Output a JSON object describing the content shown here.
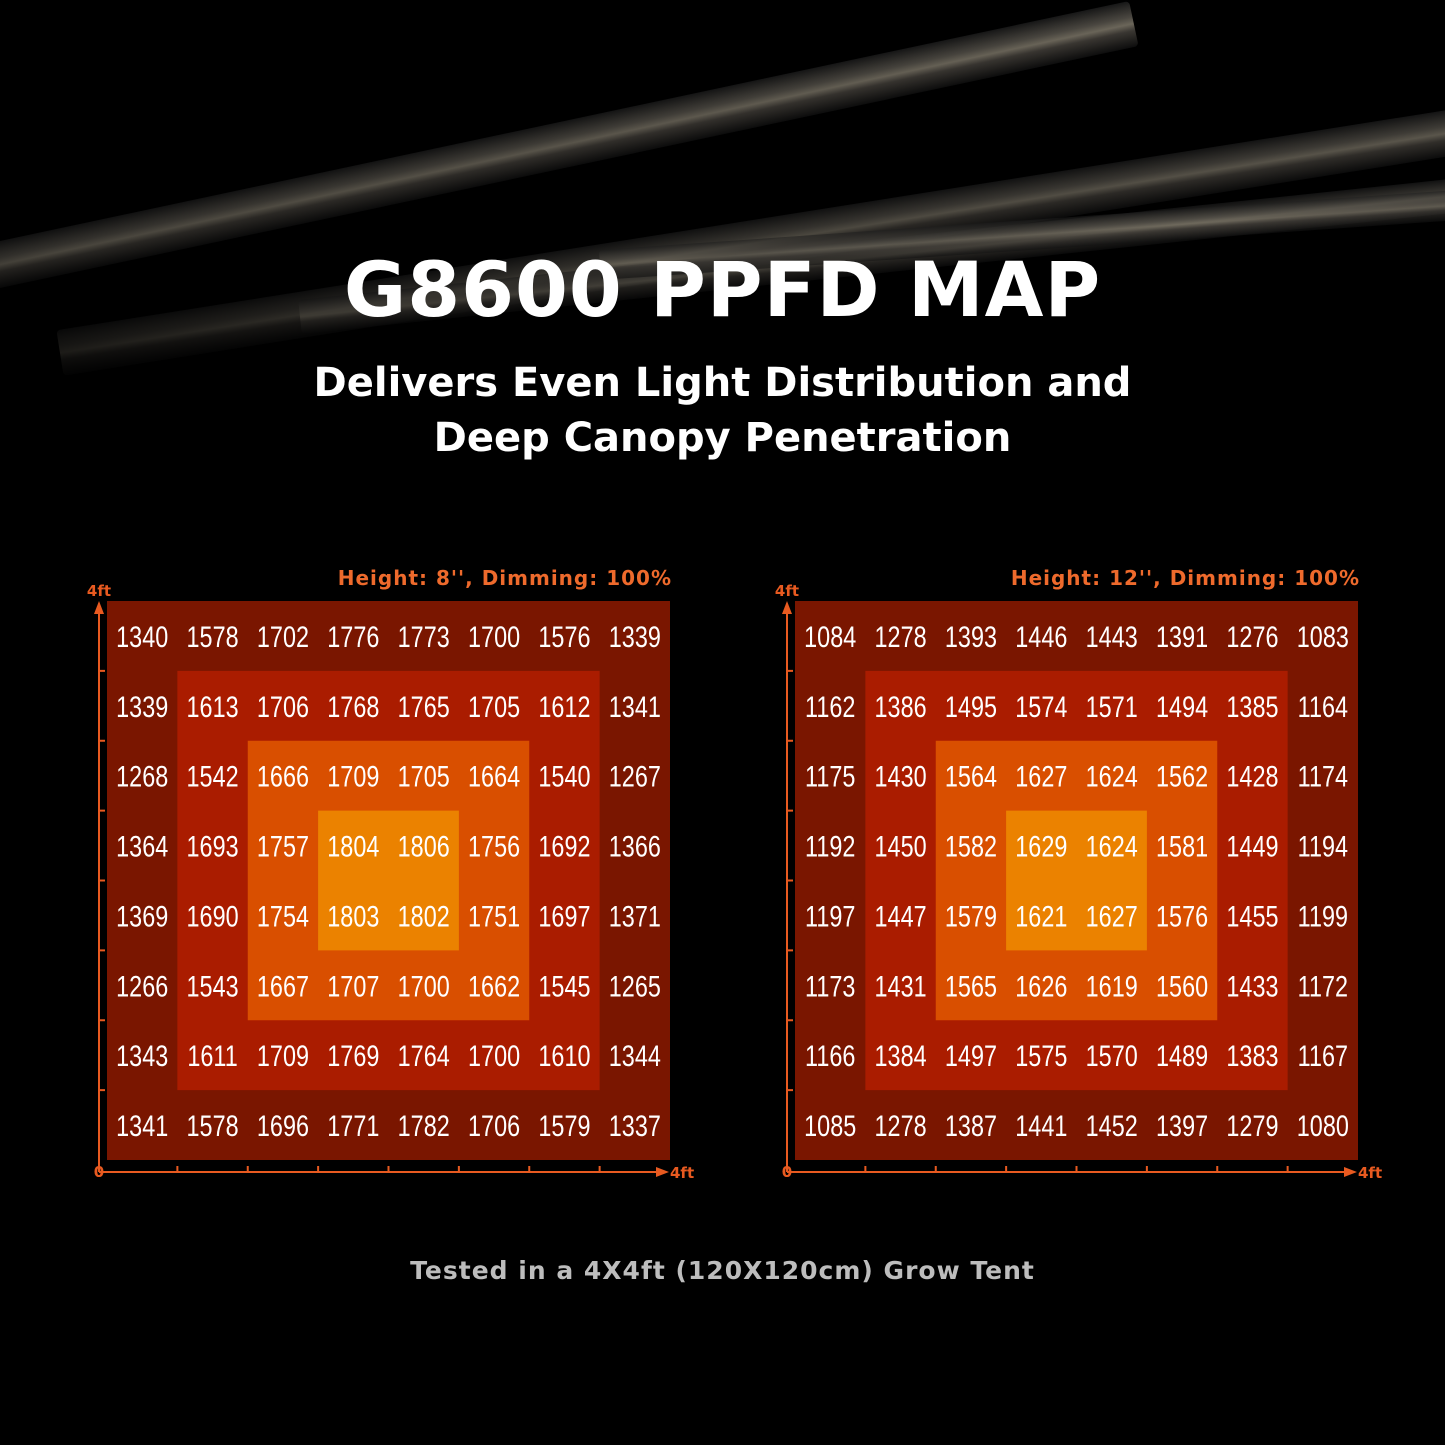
{
  "title": "G8600 PPFD MAP",
  "subtitle_lines": [
    "Delivers Even Light Distribution and",
    "Deep Canopy Penetration"
  ],
  "footer": "Tested in a 4X4ft (120X120cm) Grow Tent",
  "colors": {
    "background": "#000000",
    "label": "#ee6a2c",
    "axis": "#e85a20",
    "zone_outer": "#7a1600",
    "zone_second": "#aa1c00",
    "zone_third": "#d94f00",
    "zone_center": "#eb8200",
    "value_text": "#ffffff"
  },
  "chart_data": [
    {
      "type": "heatmap",
      "title": "Height: 8'', Dimming: 100%",
      "x_axis": {
        "start_label": "0",
        "end_label": "4ft"
      },
      "y_axis": {
        "end_label": "4ft"
      },
      "rows": [
        [
          1340,
          1578,
          1702,
          1776,
          1773,
          1700,
          1576,
          1339
        ],
        [
          1339,
          1613,
          1706,
          1768,
          1765,
          1705,
          1612,
          1341
        ],
        [
          1268,
          1542,
          1666,
          1709,
          1705,
          1664,
          1540,
          1267
        ],
        [
          1364,
          1693,
          1757,
          1804,
          1806,
          1756,
          1692,
          1366
        ],
        [
          1369,
          1690,
          1754,
          1803,
          1802,
          1751,
          1697,
          1371
        ],
        [
          1266,
          1543,
          1667,
          1707,
          1700,
          1662,
          1545,
          1265
        ],
        [
          1343,
          1611,
          1709,
          1769,
          1764,
          1700,
          1610,
          1344
        ],
        [
          1341,
          1578,
          1696,
          1771,
          1782,
          1706,
          1579,
          1337
        ]
      ]
    },
    {
      "type": "heatmap",
      "title": "Height: 12'', Dimming: 100%",
      "x_axis": {
        "start_label": "0",
        "end_label": "4ft"
      },
      "y_axis": {
        "end_label": "4ft"
      },
      "rows": [
        [
          1084,
          1278,
          1393,
          1446,
          1443,
          1391,
          1276,
          1083
        ],
        [
          1162,
          1386,
          1495,
          1574,
          1571,
          1494,
          1385,
          1164
        ],
        [
          1175,
          1430,
          1564,
          1627,
          1624,
          1562,
          1428,
          1174
        ],
        [
          1192,
          1450,
          1582,
          1629,
          1624,
          1581,
          1449,
          1194
        ],
        [
          1197,
          1447,
          1579,
          1621,
          1627,
          1576,
          1455,
          1199
        ],
        [
          1173,
          1431,
          1565,
          1626,
          1619,
          1560,
          1433,
          1172
        ],
        [
          1166,
          1384,
          1497,
          1575,
          1570,
          1489,
          1383,
          1167
        ],
        [
          1085,
          1278,
          1387,
          1441,
          1452,
          1397,
          1279,
          1080
        ]
      ]
    }
  ]
}
